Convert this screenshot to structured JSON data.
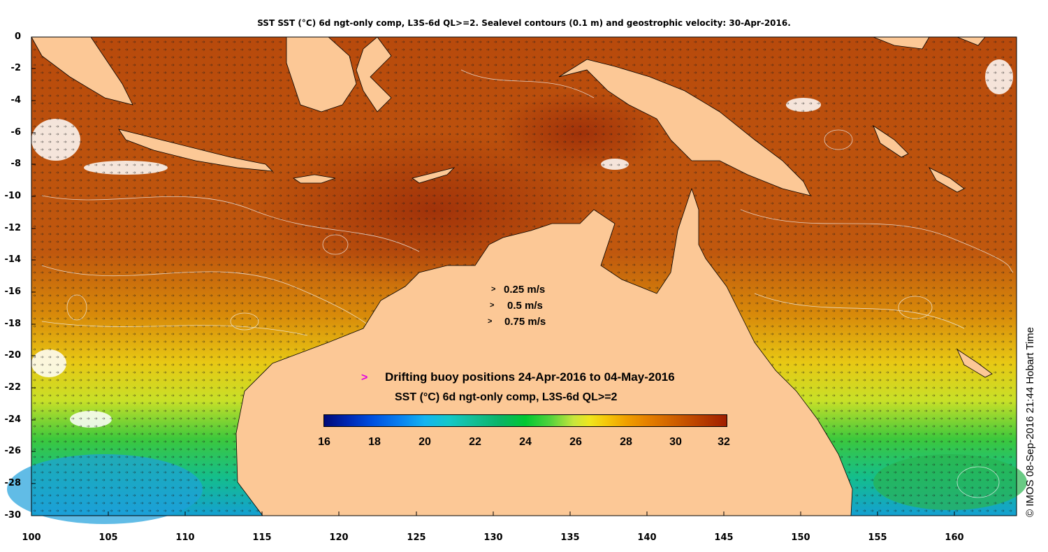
{
  "title": "SST SST (°C) 6d ngt-only comp, L3S-6d QL>=2. Sealevel contours (0.1 m) and geostrophic velocity: 30-Apr-2016.",
  "map": {
    "lon_range": [
      100,
      164
    ],
    "lat_range": [
      -30,
      0
    ],
    "x_ticks": [
      "100",
      "105",
      "110",
      "115",
      "120",
      "125",
      "130",
      "135",
      "140",
      "145",
      "150",
      "155",
      "160"
    ],
    "y_ticks": [
      "0",
      "-2",
      "-4",
      "-6",
      "-8",
      "-10",
      "-12",
      "-14",
      "-16",
      "-18",
      "-20",
      "-22",
      "-24",
      "-26",
      "-28",
      "-30"
    ],
    "land_color": "#fcc896",
    "cloud_color": "#ffffff"
  },
  "velocity_legend": [
    {
      "arrow": ">",
      "label": "0.25 m/s"
    },
    {
      "arrow": ">",
      "label": "0.5 m/s"
    },
    {
      "arrow": ">",
      "label": "0.75 m/s"
    }
  ],
  "buoy_legend": {
    "marker": ">",
    "marker_color": "#e000e0",
    "text": "Drifting buoy positions 24-Apr-2016 to 04-May-2016"
  },
  "colorbar": {
    "title": "SST (°C) 6d ngt-only comp, L3S-6d QL>=2",
    "min": 16,
    "max": 32,
    "ticks": [
      "16",
      "18",
      "20",
      "22",
      "24",
      "26",
      "28",
      "30",
      "32"
    ]
  },
  "credit": "© IMOS 08-Sep-2016 21:44 Hobart Time"
}
